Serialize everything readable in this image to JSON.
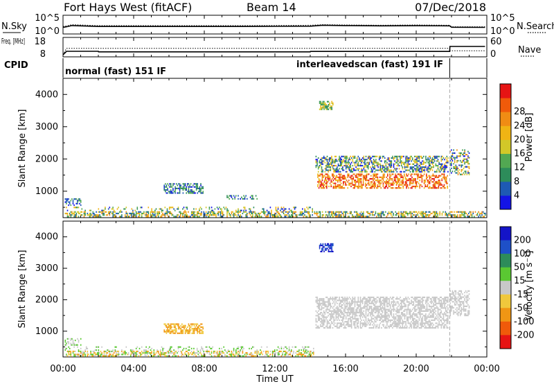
{
  "header": {
    "station": "Fort Hays West (fitACF)",
    "beam": "Beam 14",
    "date": "07/Dec/2018"
  },
  "chart_data": [
    {
      "type": "line",
      "panel": "noise",
      "ylabel_left": "N.Sky",
      "ylabel_right": "N.Search",
      "yticks": [
        "10^5",
        "10^0"
      ],
      "series": [
        {
          "name": "N.Sky",
          "x": [
            0.0,
            0.2,
            0.5,
            2.0,
            4.0,
            6.0,
            8.0,
            10.0,
            12.0,
            14.0,
            14.7,
            16.0,
            18.0,
            20.0,
            21.9,
            22.0,
            23.9
          ],
          "y": [
            1.7,
            1.9,
            2.3,
            2.0,
            2.0,
            2.0,
            2.0,
            2.0,
            2.05,
            2.1,
            2.4,
            2.3,
            2.2,
            2.25,
            2.2,
            1.75,
            1.7
          ]
        },
        {
          "name": "N.Search",
          "x": [
            0.0,
            0.2,
            0.5,
            2.0,
            4.0,
            6.0,
            8.0,
            10.0,
            12.0,
            14.0,
            14.7,
            16.0,
            18.0,
            20.0,
            21.9,
            22.0,
            23.9
          ],
          "y": [
            2.0,
            2.2,
            2.6,
            2.3,
            2.3,
            2.3,
            2.3,
            2.3,
            2.35,
            2.4,
            2.6,
            2.5,
            2.4,
            2.5,
            2.4,
            1.9,
            1.9
          ]
        }
      ]
    },
    {
      "type": "line",
      "panel": "frequency",
      "ylabel_left": "Freq. [MHz]",
      "ylabel_right": "Nave",
      "yticks_left": [
        "18",
        "8"
      ],
      "yticks_right": [
        "60",
        "0"
      ],
      "series": [
        {
          "name": "Freq.",
          "x": [
            0.0,
            0.2,
            2.0,
            2.01,
            14.0,
            14.01,
            21.9,
            21.91,
            23.9
          ],
          "y": [
            8.0,
            10.5,
            10.5,
            10.1,
            10.1,
            10.4,
            10.4,
            14.0,
            14.0
          ]
        },
        {
          "name": "Nave",
          "x": [
            0.0,
            0.2,
            21.9,
            21.91,
            23.9
          ],
          "y": [
            0,
            28,
            28,
            17,
            17
          ]
        }
      ]
    },
    {
      "type": "bar",
      "panel": "cpid",
      "ylabel": "CPID",
      "segments": [
        {
          "label": "normal (fast) 151 IF",
          "start": 0.0,
          "end": 21.9
        },
        {
          "label": "interleavedscan (fast) 191 IF",
          "start": 21.9,
          "end": 24.0
        }
      ]
    },
    {
      "type": "heatmap",
      "panel": "power",
      "ylabel": "Slant Range [km]",
      "yticks": [
        "1000",
        "2000",
        "3000",
        "4000"
      ],
      "ylim": [
        180,
        4500
      ],
      "colorbar_label": "Power [dB]",
      "colorbar_ticks": [
        "4",
        "8",
        "12",
        "16",
        "20",
        "24",
        "28"
      ],
      "colors": [
        "#1414e6",
        "#1e5ab4",
        "#2d8c5a",
        "#52a852",
        "#d2c828",
        "#f0b414",
        "#f08c14",
        "#f05a0a",
        "#e61414"
      ],
      "scatter_groups": [
        {
          "t0": 0.1,
          "t1": 23.9,
          "r0": 200,
          "r1": 380,
          "density": 0.55,
          "cmin": 1,
          "cmax": 6
        },
        {
          "t0": 0.1,
          "t1": 14.2,
          "r0": 380,
          "r1": 520,
          "density": 0.22,
          "cmin": 0,
          "cmax": 5
        },
        {
          "t0": 0.1,
          "t1": 1.0,
          "r0": 550,
          "r1": 780,
          "density": 0.45,
          "cmin": 0,
          "cmax": 3
        },
        {
          "t0": 5.7,
          "t1": 7.9,
          "r0": 950,
          "r1": 1250,
          "density": 0.55,
          "cmin": 0,
          "cmax": 3
        },
        {
          "t0": 9.2,
          "t1": 11.0,
          "r0": 770,
          "r1": 880,
          "density": 0.3,
          "cmin": 0,
          "cmax": 3
        },
        {
          "t0": 14.5,
          "t1": 15.3,
          "r0": 3550,
          "r1": 3800,
          "density": 0.65,
          "cmin": 2,
          "cmax": 5
        },
        {
          "t0": 14.3,
          "t1": 21.8,
          "r0": 1600,
          "r1": 2100,
          "density": 0.55,
          "cmin": 0,
          "cmax": 5
        },
        {
          "t0": 14.4,
          "t1": 21.8,
          "r0": 1100,
          "r1": 1550,
          "density": 0.55,
          "cmin": 5,
          "cmax": 8
        },
        {
          "t0": 21.9,
          "t1": 23.0,
          "r0": 1500,
          "r1": 2300,
          "density": 0.45,
          "cmin": 0,
          "cmax": 6
        }
      ]
    },
    {
      "type": "heatmap",
      "panel": "velocity",
      "ylabel": "Slant Range [km]",
      "yticks": [
        "1000",
        "2000",
        "3000",
        "4000"
      ],
      "ylim": [
        180,
        4500
      ],
      "colorbar_label": "Velocity [m s⁻¹]",
      "colorbar_ticks": [
        "200",
        "100",
        "50",
        "15",
        "-15",
        "-50",
        "-100",
        "-200"
      ],
      "colors": [
        "#1414c8",
        "#1e50c8",
        "#2d8c5a",
        "#5ac832",
        "#c8c8c8",
        "#f0c83c",
        "#f09614",
        "#f05a0a",
        "#e61414"
      ],
      "scatter_groups": [
        {
          "t0": 0.1,
          "t1": 14.2,
          "r0": 200,
          "r1": 380,
          "density": 0.55,
          "cmin": 3,
          "cmax": 6
        },
        {
          "t0": 0.1,
          "t1": 14.2,
          "r0": 380,
          "r1": 520,
          "density": 0.2,
          "cmin": 3,
          "cmax": 4
        },
        {
          "t0": 0.1,
          "t1": 1.0,
          "r0": 550,
          "r1": 780,
          "density": 0.45,
          "cmin": 3,
          "cmax": 4
        },
        {
          "t0": 5.7,
          "t1": 7.9,
          "r0": 950,
          "r1": 1250,
          "density": 0.6,
          "cmin": 5,
          "cmax": 6
        },
        {
          "t0": 14.5,
          "t1": 15.3,
          "r0": 3550,
          "r1": 3800,
          "density": 0.65,
          "cmin": 0,
          "cmax": 1
        },
        {
          "t0": 14.3,
          "t1": 21.8,
          "r0": 1100,
          "r1": 2100,
          "density": 0.6,
          "cmin": 4,
          "cmax": 4
        },
        {
          "t0": 21.9,
          "t1": 23.0,
          "r0": 1500,
          "r1": 2300,
          "density": 0.5,
          "cmin": 4,
          "cmax": 4
        }
      ]
    }
  ],
  "time_axis": {
    "xlabel": "Time UT",
    "xlim": [
      0,
      24
    ],
    "ticks": [
      {
        "t": 0,
        "label": "00:00"
      },
      {
        "t": 4,
        "label": "04:00"
      },
      {
        "t": 8,
        "label": "08:00"
      },
      {
        "t": 12,
        "label": "12:00"
      },
      {
        "t": 16,
        "label": "16:00"
      },
      {
        "t": 20,
        "label": "20:00"
      },
      {
        "t": 24,
        "label": "00:00"
      }
    ],
    "mode_change_time": 21.9
  }
}
